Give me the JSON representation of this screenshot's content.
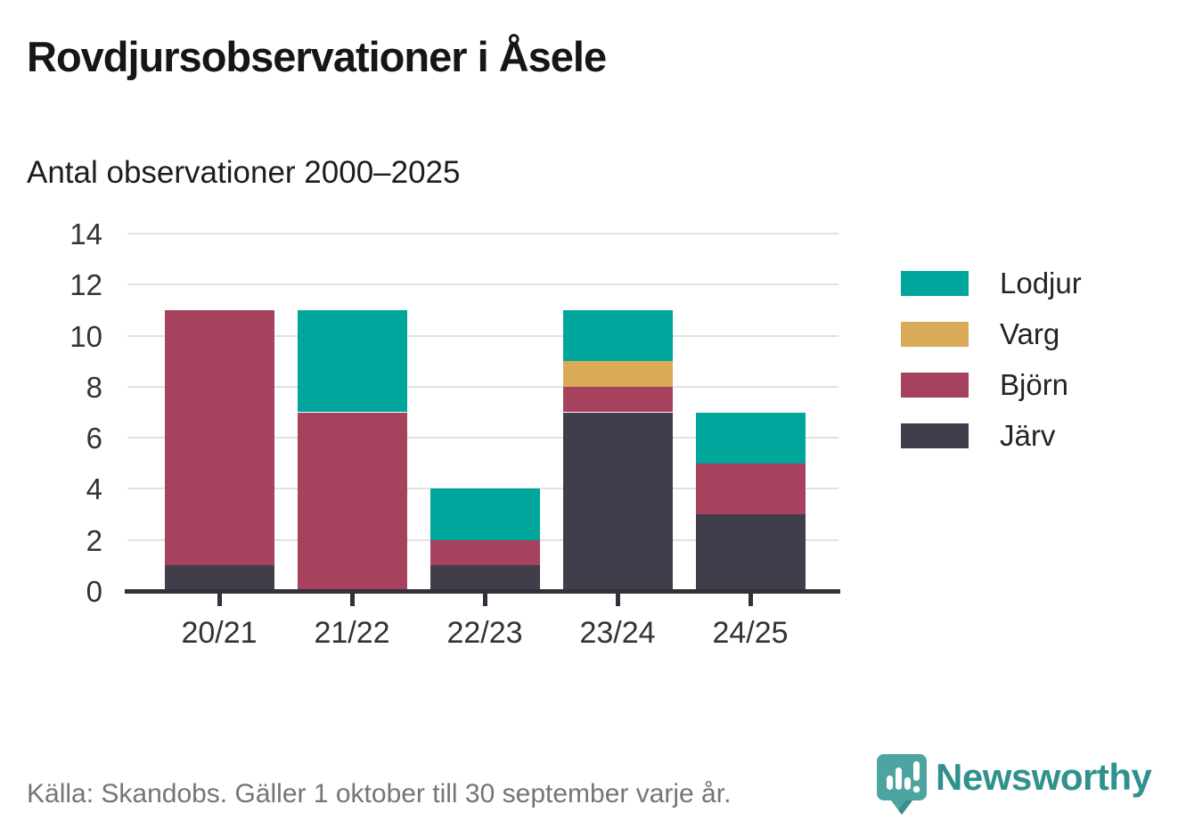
{
  "header": {
    "title": "Rovdjursobservationer i Åsele",
    "subtitle": "Antal observationer 2000–2025"
  },
  "chart_data": {
    "type": "bar",
    "stacked": true,
    "title": "Rovdjursobservationer i Åsele",
    "subtitle": "Antal observationer 2000–2025",
    "categories": [
      "20/21",
      "21/22",
      "22/23",
      "23/24",
      "24/25"
    ],
    "series": [
      {
        "name": "Järv",
        "color": "#413e4b",
        "values": [
          1,
          0,
          1,
          7,
          3
        ]
      },
      {
        "name": "Björn",
        "color": "#a6415e",
        "values": [
          10,
          7,
          1,
          1,
          2
        ]
      },
      {
        "name": "Varg",
        "color": "#d9aa57",
        "values": [
          0,
          0,
          0,
          1,
          0
        ]
      },
      {
        "name": "Lodjur",
        "color": "#00a69c",
        "values": [
          0,
          4,
          2,
          2,
          2
        ]
      }
    ],
    "totals": [
      11,
      11,
      4,
      11,
      7
    ],
    "y_ticks": [
      0,
      2,
      4,
      6,
      8,
      10,
      12,
      14
    ],
    "ylim": [
      0,
      14
    ],
    "xlabel": "",
    "ylabel": "",
    "grid": true,
    "legend_position": "right",
    "legend_order": [
      "Lodjur",
      "Varg",
      "Björn",
      "Järv"
    ]
  },
  "footer": {
    "source": "Källa: Skandobs. Gäller 1 oktober till 30 september varje år.",
    "brand": "Newsworthy"
  },
  "colors": {
    "teal": "#00a69c",
    "gold": "#d9aa57",
    "maroon": "#a6415e",
    "dark": "#413e4b",
    "grid": "#e1e1e1",
    "axis": "#33303a",
    "brand_teal": "#2f918c",
    "logo_teal": "#4da4a0",
    "logo_teal_dark": "#3c8f8b"
  }
}
